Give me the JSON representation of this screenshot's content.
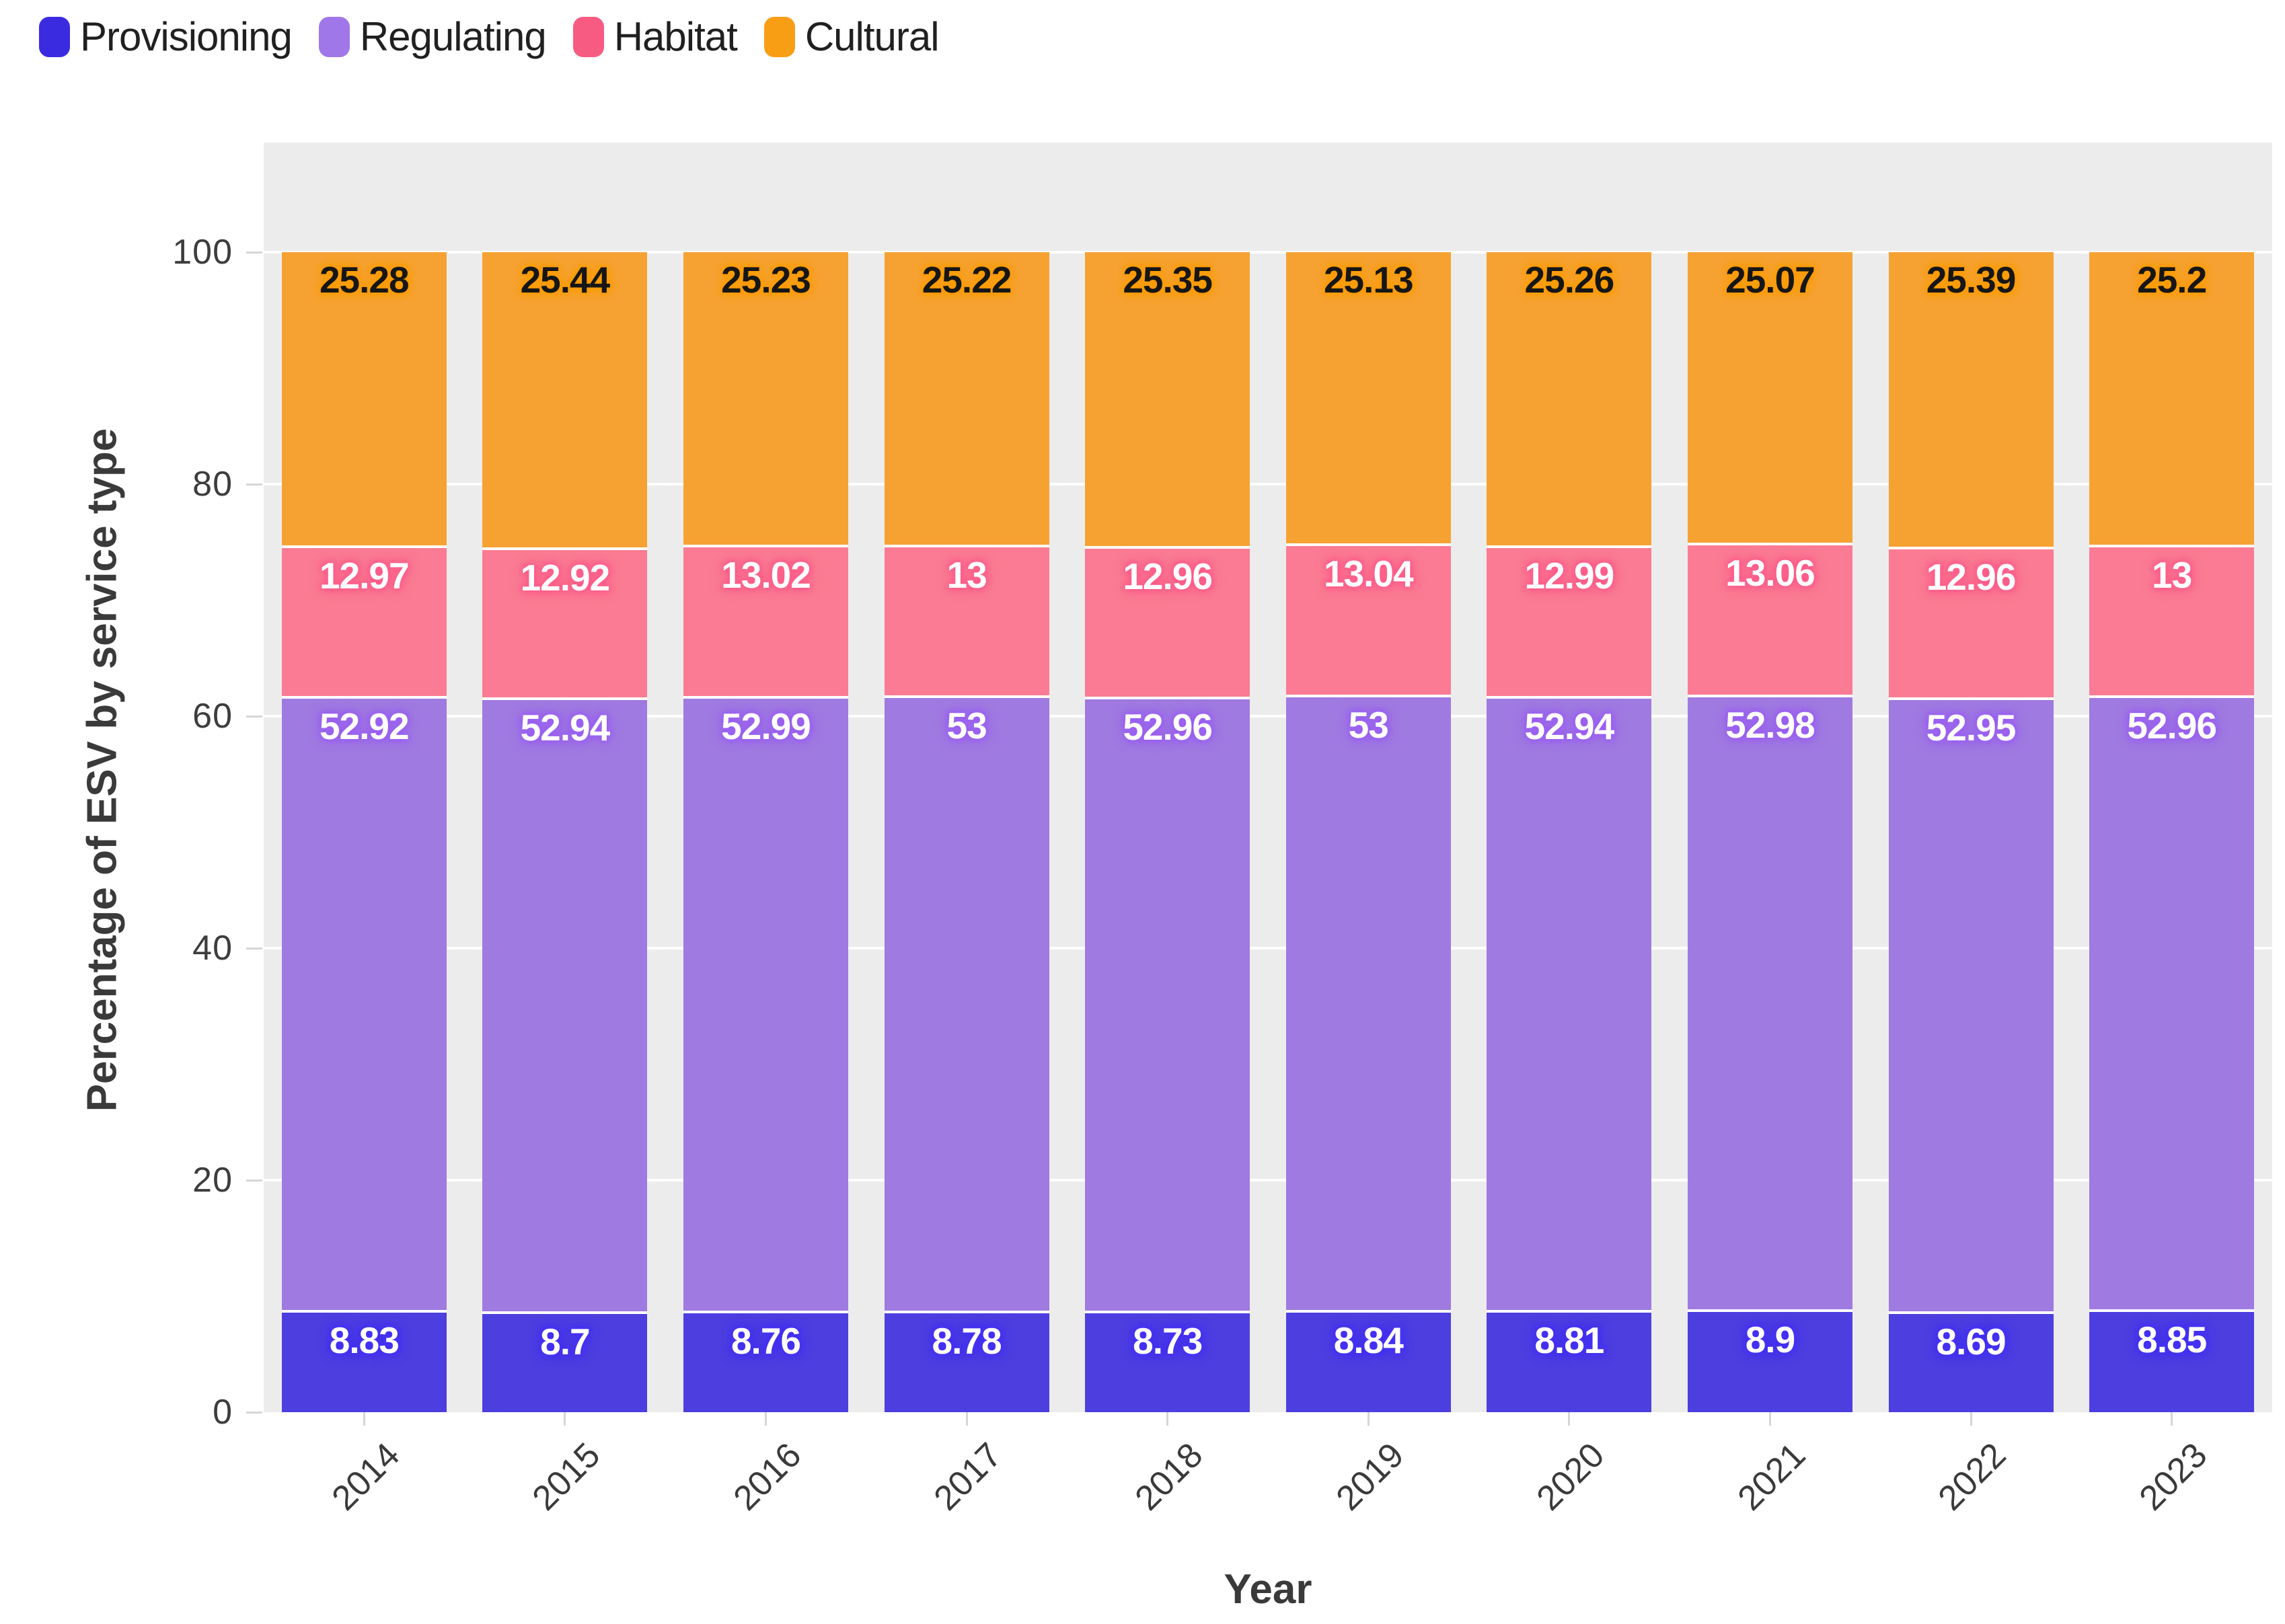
{
  "y_axis": {
    "title": "Percentage of ESV by service type",
    "ticks": [
      0,
      20,
      40,
      60,
      80,
      100
    ]
  },
  "x_axis": {
    "title": "Year"
  },
  "plot": {
    "background_color": "#ececec",
    "gridline_color": "#ffffff"
  },
  "chart_data": {
    "type": "bar",
    "stacked": true,
    "title": "",
    "xlabel": "Year",
    "ylabel": "Percentage of ESV by service type",
    "ylim": [
      0,
      100
    ],
    "grid": true,
    "legend_position": "top-left",
    "categories": [
      "2014",
      "2015",
      "2016",
      "2017",
      "2018",
      "2019",
      "2020",
      "2021",
      "2022",
      "2023"
    ],
    "series": [
      {
        "name": "Provisioning",
        "color": "#4d3ee0",
        "legend_color": "#3a2be0",
        "label_color": "#ffffff",
        "label_glow": "#4430f5",
        "values": [
          8.83,
          8.7,
          8.76,
          8.78,
          8.73,
          8.84,
          8.81,
          8.9,
          8.69,
          8.85
        ]
      },
      {
        "name": "Regulating",
        "color": "#9f7ae0",
        "legend_color": "#a077e8",
        "label_color": "#ffffff",
        "label_glow": "#9a5ff2",
        "values": [
          52.92,
          52.94,
          52.99,
          53,
          52.96,
          53,
          52.94,
          52.98,
          52.95,
          52.96
        ]
      },
      {
        "name": "Habitat",
        "color": "#fa7b93",
        "legend_color": "#f85b82",
        "label_color": "#ffffff",
        "label_glow": "#fc5c8a",
        "values": [
          12.97,
          12.92,
          13.02,
          13,
          12.96,
          13.04,
          12.99,
          13.06,
          12.96,
          13
        ]
      },
      {
        "name": "Cultural",
        "color": "#f6a233",
        "legend_color": "#f89e14",
        "label_color": "#161616",
        "label_glow": "#fb9c04",
        "values": [
          25.28,
          25.44,
          25.23,
          25.22,
          25.35,
          25.13,
          25.26,
          25.07,
          25.39,
          25.2
        ]
      }
    ]
  }
}
